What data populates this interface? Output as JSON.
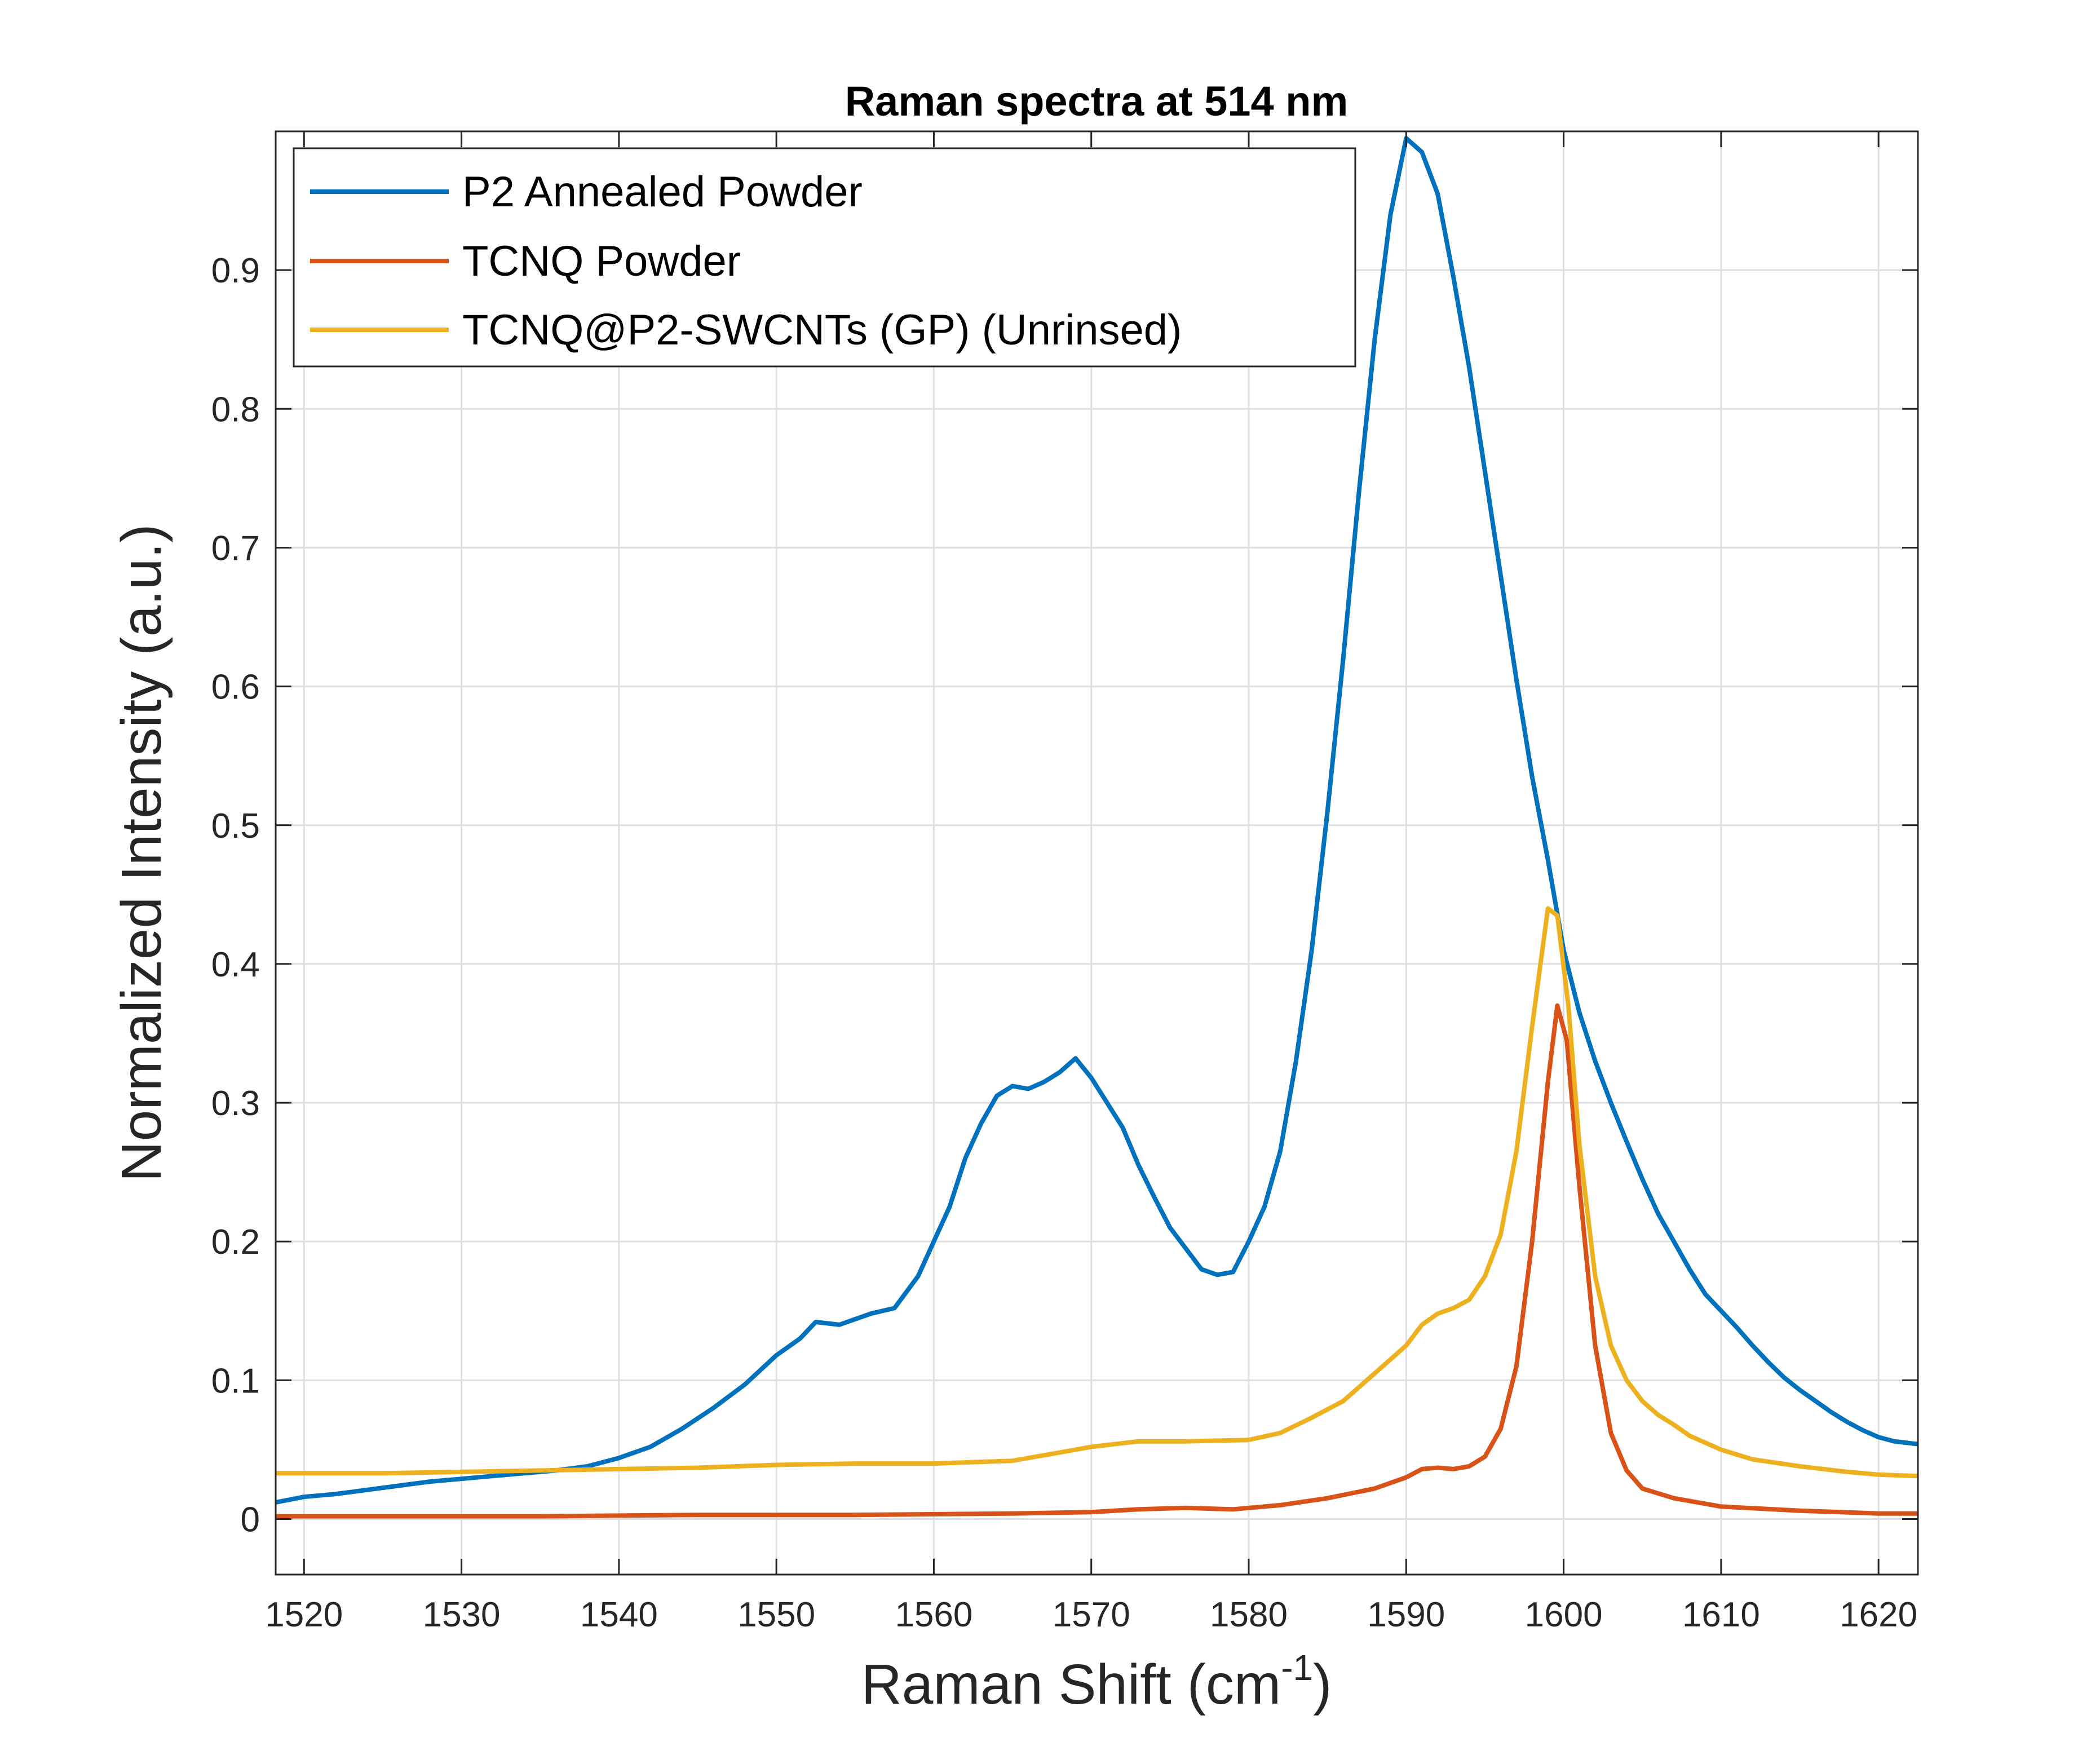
{
  "chart_data": {
    "type": "line",
    "title": "Raman spectra at 514 nm",
    "xlabel": "Raman Shift (cm",
    "xlabel_sup": "-1",
    "xlabel_tail": ")",
    "ylabel": "Normalized Intensity (a.u.)",
    "xlim": [
      1518.2,
      1622.5
    ],
    "ylim": [
      -0.04,
      1.0
    ],
    "xticks": [
      1520,
      1530,
      1540,
      1550,
      1560,
      1570,
      1580,
      1590,
      1600,
      1610,
      1620
    ],
    "xtick_labels": [
      "1520",
      "1530",
      "1540",
      "1550",
      "1560",
      "1570",
      "1580",
      "1590",
      "1600",
      "1610",
      "1620"
    ],
    "yticks": [
      0,
      0.1,
      0.2,
      0.3,
      0.4,
      0.5,
      0.6,
      0.7,
      0.8,
      0.9
    ],
    "ytick_labels": [
      "0",
      "0.1",
      "0.2",
      "0.3",
      "0.4",
      "0.5",
      "0.6",
      "0.7",
      "0.8",
      "0.9"
    ],
    "grid": true,
    "legend_position": "top-left",
    "series": [
      {
        "name": "P2 Annealed Powder",
        "color": "#0072BD",
        "points": [
          [
            1518.2,
            0.012
          ],
          [
            1520,
            0.016
          ],
          [
            1522,
            0.018
          ],
          [
            1524,
            0.021
          ],
          [
            1526,
            0.024
          ],
          [
            1528,
            0.027
          ],
          [
            1530,
            0.029
          ],
          [
            1532,
            0.031
          ],
          [
            1534,
            0.033
          ],
          [
            1536,
            0.035
          ],
          [
            1538,
            0.038
          ],
          [
            1540,
            0.044
          ],
          [
            1542,
            0.052
          ],
          [
            1544,
            0.065
          ],
          [
            1546,
            0.08
          ],
          [
            1548,
            0.097
          ],
          [
            1550,
            0.118
          ],
          [
            1551.5,
            0.13
          ],
          [
            1552.5,
            0.142
          ],
          [
            1554,
            0.14
          ],
          [
            1556,
            0.148
          ],
          [
            1557.5,
            0.152
          ],
          [
            1559,
            0.175
          ],
          [
            1560,
            0.2
          ],
          [
            1561,
            0.225
          ],
          [
            1562,
            0.26
          ],
          [
            1563,
            0.285
          ],
          [
            1564,
            0.305
          ],
          [
            1565,
            0.312
          ],
          [
            1566,
            0.31
          ],
          [
            1567,
            0.315
          ],
          [
            1568,
            0.322
          ],
          [
            1569,
            0.332
          ],
          [
            1570,
            0.318
          ],
          [
            1571,
            0.3
          ],
          [
            1572,
            0.282
          ],
          [
            1573,
            0.255
          ],
          [
            1574,
            0.232
          ],
          [
            1575,
            0.21
          ],
          [
            1576,
            0.195
          ],
          [
            1577,
            0.18
          ],
          [
            1578,
            0.176
          ],
          [
            1579,
            0.178
          ],
          [
            1580,
            0.2
          ],
          [
            1581,
            0.225
          ],
          [
            1582,
            0.265
          ],
          [
            1583,
            0.33
          ],
          [
            1584,
            0.41
          ],
          [
            1585,
            0.51
          ],
          [
            1586,
            0.62
          ],
          [
            1587,
            0.74
          ],
          [
            1588,
            0.85
          ],
          [
            1589,
            0.94
          ],
          [
            1590,
            0.995
          ],
          [
            1591,
            0.985
          ],
          [
            1592,
            0.955
          ],
          [
            1593,
            0.895
          ],
          [
            1594,
            0.83
          ],
          [
            1595,
            0.755
          ],
          [
            1596,
            0.68
          ],
          [
            1597,
            0.605
          ],
          [
            1598,
            0.535
          ],
          [
            1599,
            0.475
          ],
          [
            1600,
            0.41
          ],
          [
            1601,
            0.365
          ],
          [
            1602,
            0.33
          ],
          [
            1603,
            0.3
          ],
          [
            1604,
            0.272
          ],
          [
            1605,
            0.245
          ],
          [
            1606,
            0.22
          ],
          [
            1607,
            0.2
          ],
          [
            1608,
            0.18
          ],
          [
            1609,
            0.162
          ],
          [
            1610,
            0.15
          ],
          [
            1611,
            0.138
          ],
          [
            1612,
            0.125
          ],
          [
            1613,
            0.113
          ],
          [
            1614,
            0.102
          ],
          [
            1615,
            0.093
          ],
          [
            1616,
            0.085
          ],
          [
            1617,
            0.077
          ],
          [
            1618,
            0.07
          ],
          [
            1619,
            0.064
          ],
          [
            1620,
            0.059
          ],
          [
            1621,
            0.056
          ],
          [
            1622.5,
            0.054
          ]
        ]
      },
      {
        "name": "TCNQ Powder",
        "color": "#D95319",
        "points": [
          [
            1518.2,
            0.002
          ],
          [
            1525,
            0.002
          ],
          [
            1535,
            0.002
          ],
          [
            1545,
            0.003
          ],
          [
            1555,
            0.003
          ],
          [
            1565,
            0.004
          ],
          [
            1570,
            0.005
          ],
          [
            1573,
            0.007
          ],
          [
            1576,
            0.008
          ],
          [
            1579,
            0.007
          ],
          [
            1582,
            0.01
          ],
          [
            1585,
            0.015
          ],
          [
            1588,
            0.022
          ],
          [
            1590,
            0.03
          ],
          [
            1591,
            0.036
          ],
          [
            1592,
            0.037
          ],
          [
            1593,
            0.036
          ],
          [
            1594,
            0.038
          ],
          [
            1595,
            0.045
          ],
          [
            1596,
            0.065
          ],
          [
            1597,
            0.11
          ],
          [
            1598,
            0.2
          ],
          [
            1599,
            0.315
          ],
          [
            1599.6,
            0.37
          ],
          [
            1600.2,
            0.345
          ],
          [
            1601,
            0.24
          ],
          [
            1602,
            0.125
          ],
          [
            1603,
            0.062
          ],
          [
            1604,
            0.035
          ],
          [
            1605,
            0.022
          ],
          [
            1607,
            0.015
          ],
          [
            1610,
            0.009
          ],
          [
            1615,
            0.006
          ],
          [
            1620,
            0.004
          ],
          [
            1622.5,
            0.004
          ]
        ]
      },
      {
        "name": "TCNQ@P2-SWCNTs (GP) (Unrinsed)",
        "color": "#EDB120",
        "points": [
          [
            1518.2,
            0.033
          ],
          [
            1525,
            0.033
          ],
          [
            1535,
            0.035
          ],
          [
            1545,
            0.037
          ],
          [
            1550,
            0.039
          ],
          [
            1555,
            0.04
          ],
          [
            1560,
            0.04
          ],
          [
            1565,
            0.042
          ],
          [
            1568,
            0.048
          ],
          [
            1570,
            0.052
          ],
          [
            1573,
            0.056
          ],
          [
            1576,
            0.056
          ],
          [
            1580,
            0.057
          ],
          [
            1582,
            0.062
          ],
          [
            1584,
            0.073
          ],
          [
            1586,
            0.085
          ],
          [
            1588,
            0.105
          ],
          [
            1590,
            0.125
          ],
          [
            1591,
            0.14
          ],
          [
            1592,
            0.148
          ],
          [
            1593,
            0.152
          ],
          [
            1594,
            0.158
          ],
          [
            1595,
            0.175
          ],
          [
            1596,
            0.205
          ],
          [
            1597,
            0.265
          ],
          [
            1598,
            0.355
          ],
          [
            1599,
            0.44
          ],
          [
            1599.6,
            0.435
          ],
          [
            1600.3,
            0.37
          ],
          [
            1601,
            0.27
          ],
          [
            1602,
            0.175
          ],
          [
            1603,
            0.125
          ],
          [
            1604,
            0.1
          ],
          [
            1605,
            0.085
          ],
          [
            1606,
            0.075
          ],
          [
            1607,
            0.068
          ],
          [
            1608,
            0.06
          ],
          [
            1610,
            0.05
          ],
          [
            1612,
            0.043
          ],
          [
            1615,
            0.038
          ],
          [
            1618,
            0.034
          ],
          [
            1620,
            0.032
          ],
          [
            1622.5,
            0.031
          ]
        ]
      }
    ]
  }
}
